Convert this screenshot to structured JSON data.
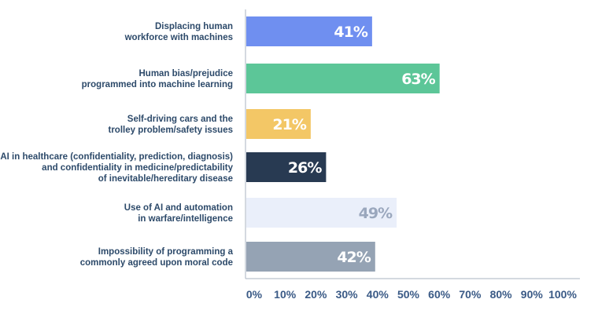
{
  "chart_data": {
    "type": "bar",
    "orientation": "horizontal",
    "categories": [
      [
        "Displacing human",
        "workforce with machines"
      ],
      [
        "Human bias/prejudice",
        "programmed into machine learning"
      ],
      [
        "Self-driving cars and the",
        "trolley problem/safety issues"
      ],
      [
        "AI in healthcare (confidentiality, prediction, diagnosis)",
        "and confidentiality in medicine/predictability",
        "of inevitable/hereditary disease"
      ],
      [
        "Use of AI and automation",
        "in warfare/intelligence"
      ],
      [
        "Impossibility of programming a",
        "commonly agreed upon moral code"
      ]
    ],
    "values": [
      41,
      63,
      21,
      26,
      49,
      42
    ],
    "data_labels": [
      "41%",
      "63%",
      "21%",
      "26%",
      "49%",
      "42%"
    ],
    "colors": [
      "#6f8ff0",
      "#5cc698",
      "#f3c766",
      "#283a52",
      "#eaeffa",
      "#95a3b4"
    ],
    "label_colors": [
      "#ffffff",
      "#ffffff",
      "#ffffff",
      "#ffffff",
      "#9aa7bd",
      "#ffffff"
    ],
    "xlim": [
      0,
      100
    ],
    "xticks": [
      "0%",
      "10%",
      "20%",
      "30%",
      "40%",
      "50%",
      "60%",
      "70%",
      "80%",
      "90%",
      "100%"
    ],
    "title": "",
    "xlabel": "",
    "ylabel": "",
    "grid": false,
    "legend": "none"
  }
}
